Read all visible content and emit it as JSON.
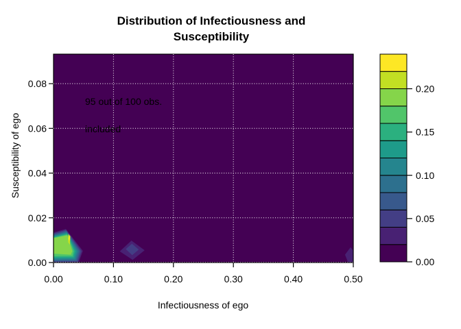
{
  "title": {
    "line1": "Distribution of Infectiousness and",
    "line2": "Susceptibility"
  },
  "annotation": {
    "line1": "95 out of 100 obs.",
    "line2": "included"
  },
  "axes": {
    "x": {
      "label": "Infectiousness of ego",
      "tick_values": [
        0,
        0.1,
        0.2,
        0.3,
        0.4,
        0.5
      ],
      "tick_labels": [
        "0.00",
        "0.10",
        "0.20",
        "0.30",
        "0.40",
        "0.50"
      ],
      "range": [
        0,
        0.5
      ]
    },
    "y": {
      "label": "Susceptibility of ego",
      "tick_values": [
        0,
        0.02,
        0.04,
        0.06,
        0.08
      ],
      "tick_labels": [
        "0.00",
        "0.02",
        "0.04",
        "0.06",
        "0.08"
      ],
      "range": [
        0,
        0.0932
      ]
    }
  },
  "grid": {
    "x_lines": [
      0.1,
      0.2,
      0.3,
      0.4
    ],
    "y_lines": [
      0,
      0.02,
      0.04,
      0.06,
      0.08
    ],
    "color": "#ffffff",
    "style": "dotted"
  },
  "legend": {
    "range": [
      0,
      0.24
    ],
    "colors_bottom_to_top": [
      "#440154",
      "#482173",
      "#433E85",
      "#38598C",
      "#2D708E",
      "#25858E",
      "#1E9B8A",
      "#2BB07F",
      "#51C56A",
      "#85D54A",
      "#C2DF23",
      "#FDE725"
    ],
    "tick_values": [
      0,
      0.05,
      0.1,
      0.15,
      0.2
    ],
    "tick_labels": [
      "0.00",
      "0.05",
      "0.10",
      "0.15",
      "0.20"
    ],
    "border_color": "#000000"
  },
  "chart_data": {
    "type": "heatmap",
    "subtype": "filled-contour-density",
    "title": "Distribution of Infectiousness and Susceptibility",
    "xlabel": "Infectiousness of ego",
    "ylabel": "Susceptibility of ego",
    "xlim": [
      0,
      0.5
    ],
    "ylim": [
      0,
      0.0932
    ],
    "annotation": "95 out of 100 obs. included",
    "background_level_color": "#440154",
    "level_breaks": [
      0,
      0.02,
      0.04,
      0.06,
      0.08,
      0.1,
      0.12,
      0.14,
      0.16,
      0.18,
      0.2,
      0.22,
      0.24
    ],
    "frame_color": "#000000",
    "density_peaks": [
      {
        "name": "main-peak",
        "peak_x": 0.026,
        "peak_y": 0.01,
        "peak_density": 0.23,
        "bands": [
          {
            "level": 0.02,
            "color": "#482173",
            "polygon": [
              [
                -0.003,
                0.0132
              ],
              [
                0.0206,
                0.015
              ],
              [
                0.049,
                0.0052
              ],
              [
                0.0424,
                0.0004
              ],
              [
                0.03,
                -0.003
              ],
              [
                -0.003,
                -0.003
              ]
            ]
          },
          {
            "level": 0.04,
            "color": "#433E85",
            "polygon": [
              [
                -0.003,
                0.0128
              ],
              [
                0.021,
                0.0146
              ],
              [
                0.0468,
                0.0051
              ],
              [
                0.0407,
                0.0003
              ],
              [
                -0.003,
                0.0001
              ]
            ]
          },
          {
            "level": 0.06,
            "color": "#38598C",
            "polygon": [
              [
                -0.003,
                0.0124
              ],
              [
                0.0214,
                0.0142
              ],
              [
                0.0446,
                0.0051
              ],
              [
                0.0392,
                0.0006
              ],
              [
                -0.003,
                0.0005
              ]
            ]
          },
          {
            "level": 0.08,
            "color": "#2D708E",
            "polygon": [
              [
                -0.003,
                0.012
              ],
              [
                0.0218,
                0.0138
              ],
              [
                0.0424,
                0.0051
              ],
              [
                0.0377,
                0.001
              ],
              [
                -0.003,
                0.0009
              ]
            ]
          },
          {
            "level": 0.1,
            "color": "#25858E",
            "polygon": [
              [
                -0.003,
                0.0117
              ],
              [
                0.0221,
                0.0134
              ],
              [
                0.0402,
                0.0051
              ],
              [
                0.0362,
                0.0014
              ],
              [
                -0.003,
                0.0013
              ]
            ]
          },
          {
            "level": 0.12,
            "color": "#1E9B8A",
            "polygon": [
              [
                -0.003,
                0.0114
              ],
              [
                0.0224,
                0.0131
              ],
              [
                0.038,
                0.0051
              ],
              [
                0.0347,
                0.0019
              ],
              [
                -0.003,
                0.0018
              ]
            ]
          },
          {
            "level": 0.14,
            "color": "#2BB07F",
            "polygon": [
              [
                -0.003,
                0.0111
              ],
              [
                0.0227,
                0.0128
              ],
              [
                0.0358,
                0.0051
              ],
              [
                0.0332,
                0.0024
              ],
              [
                -0.003,
                0.0023
              ]
            ]
          },
          {
            "level": 0.16,
            "color": "#51C56A",
            "polygon": [
              [
                -0.003,
                0.0109
              ],
              [
                0.023,
                0.0125
              ],
              [
                0.0336,
                0.0051
              ],
              [
                0.0317,
                0.0029
              ],
              [
                -0.003,
                0.0028
              ]
            ]
          },
          {
            "level": 0.18,
            "color": "#85D54A",
            "polygon": [
              [
                -0.003,
                0.0107
              ],
              [
                0.0233,
                0.0122
              ],
              [
                0.0314,
                0.0051
              ],
              [
                0.029,
                0.0035
              ],
              [
                -0.003,
                0.004
              ]
            ]
          },
          {
            "level": 0.2,
            "color": "#C2DF23",
            "polygon": [
              [
                0.0247,
                0.0128
              ],
              [
                0.0281,
                0.0117
              ],
              [
                0.0273,
                0.0079
              ],
              [
                0.0243,
                0.0091
              ]
            ]
          },
          {
            "level": 0.22,
            "color": "#FDE725",
            "polygon": [
              [
                0.0252,
                0.0122
              ],
              [
                0.0274,
                0.0114
              ],
              [
                0.0267,
                0.0096
              ],
              [
                0.0249,
                0.0105
              ]
            ]
          }
        ]
      },
      {
        "name": "secondary-peak",
        "peak_x": 0.131,
        "peak_y": 0.006,
        "peak_density": 0.055,
        "bands": [
          {
            "level": 0.02,
            "color": "#482173",
            "polygon": [
              [
                0.1105,
                0.005
              ],
              [
                0.13,
                0.0098
              ],
              [
                0.152,
                0.0055
              ],
              [
                0.132,
                0.0012
              ]
            ]
          },
          {
            "level": 0.04,
            "color": "#433E85",
            "polygon": [
              [
                0.1205,
                0.006
              ],
              [
                0.1308,
                0.0084
              ],
              [
                0.1422,
                0.0058
              ],
              [
                0.1312,
                0.0033
              ]
            ]
          }
        ]
      },
      {
        "name": "right-edge-peak",
        "peak_x": 0.5,
        "peak_y": 0.003,
        "peak_density": 0.03,
        "bands": [
          {
            "level": 0.02,
            "color": "#482173",
            "polygon": [
              [
                0.4862,
                0.0035
              ],
              [
                0.4953,
                0.0068
              ],
              [
                0.506,
                0.0035
              ],
              [
                0.496,
                -0.003
              ]
            ]
          }
        ]
      }
    ]
  }
}
